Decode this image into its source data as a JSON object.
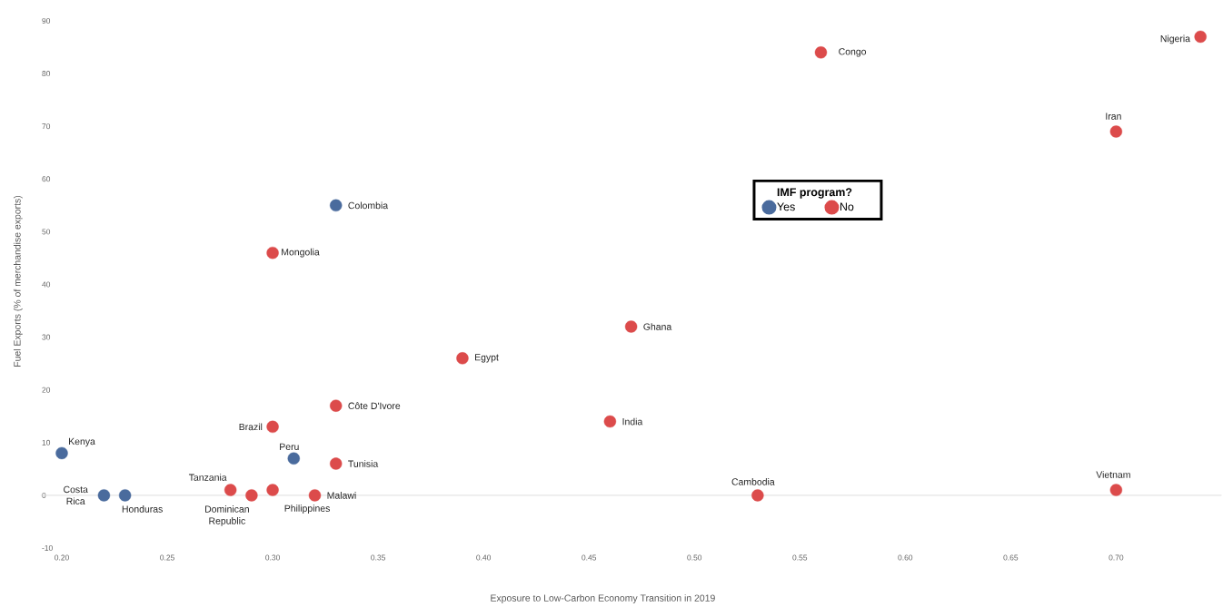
{
  "chart_data": {
    "type": "scatter",
    "xlabel": "Exposure to Low-Carbon Economy Transition in 2019",
    "ylabel": "Fuel Exports (% of merchandise exports)",
    "legend_title": "IMF program?",
    "legend": "top right",
    "marker": "circle",
    "xlim": [
      0.19,
      0.75
    ],
    "ylim": [
      -10,
      90
    ],
    "xticks": [
      {
        "value": 0.2,
        "label": "0.20"
      },
      {
        "value": 0.25,
        "label": "0.25"
      },
      {
        "value": 0.3,
        "label": "0.30"
      },
      {
        "value": 0.35,
        "label": "0.35"
      },
      {
        "value": 0.4,
        "label": "0.40"
      },
      {
        "value": 0.45,
        "label": "0.45"
      },
      {
        "value": 0.5,
        "label": "0.50"
      },
      {
        "value": 0.55,
        "label": "0.55"
      },
      {
        "value": 0.6,
        "label": "0.60"
      },
      {
        "value": 0.65,
        "label": "0.65"
      },
      {
        "value": 0.7,
        "label": "0.70"
      }
    ],
    "yticks": [
      -10,
      0,
      10,
      20,
      30,
      40,
      50,
      60,
      70,
      80,
      90
    ],
    "ref_lines": [
      {
        "axis": "y",
        "value": 0,
        "color": "#dddddd"
      }
    ],
    "series": [
      {
        "name": "Yes",
        "color": "#4a6b9d",
        "x": [
          0.2,
          0.22,
          0.23,
          0.31,
          0.33
        ],
        "values": [
          8,
          0,
          0,
          7,
          55
        ]
      },
      {
        "name": "No",
        "color": "#dc4b4b",
        "x": [
          0.28,
          0.29,
          0.3,
          0.32,
          0.3,
          0.33,
          0.33,
          0.3,
          0.39,
          0.47,
          0.46,
          0.53,
          0.56,
          0.74,
          0.7,
          0.7
        ],
        "values": [
          1,
          0,
          1,
          0,
          13,
          6,
          17,
          46,
          26,
          32,
          14,
          0,
          84,
          87,
          69,
          1
        ]
      }
    ],
    "annotations": [
      {
        "text": "Kenya",
        "x": 0.2,
        "y": 8
      },
      {
        "text": "Costa Rica",
        "x": 0.22,
        "y": 0
      },
      {
        "text": "Honduras",
        "x": 0.23,
        "y": 0
      },
      {
        "text": "Peru",
        "x": 0.31,
        "y": 7
      },
      {
        "text": "Colombia",
        "x": 0.33,
        "y": 55
      },
      {
        "text": "Tanzania",
        "x": 0.28,
        "y": 1
      },
      {
        "text": "Dominican Republic",
        "x": 0.29,
        "y": 0
      },
      {
        "text": "Philippines",
        "x": 0.3,
        "y": 1
      },
      {
        "text": "Malawi",
        "x": 0.32,
        "y": 0
      },
      {
        "text": "Brazil",
        "x": 0.3,
        "y": 13
      },
      {
        "text": "Tunisia",
        "x": 0.33,
        "y": 6
      },
      {
        "text": "Côte D'Ivore",
        "x": 0.33,
        "y": 17
      },
      {
        "text": "Mongolia",
        "x": 0.3,
        "y": 46
      },
      {
        "text": "Egypt",
        "x": 0.39,
        "y": 26
      },
      {
        "text": "Ghana",
        "x": 0.47,
        "y": 32
      },
      {
        "text": "India",
        "x": 0.46,
        "y": 14
      },
      {
        "text": "Cambodia",
        "x": 0.53,
        "y": 0
      },
      {
        "text": "Congo",
        "x": 0.56,
        "y": 84
      },
      {
        "text": "Nigeria",
        "x": 0.74,
        "y": 87
      },
      {
        "text": "Iran",
        "x": 0.7,
        "y": 69
      },
      {
        "text": "Vietnam",
        "x": 0.7,
        "y": 1
      }
    ]
  }
}
